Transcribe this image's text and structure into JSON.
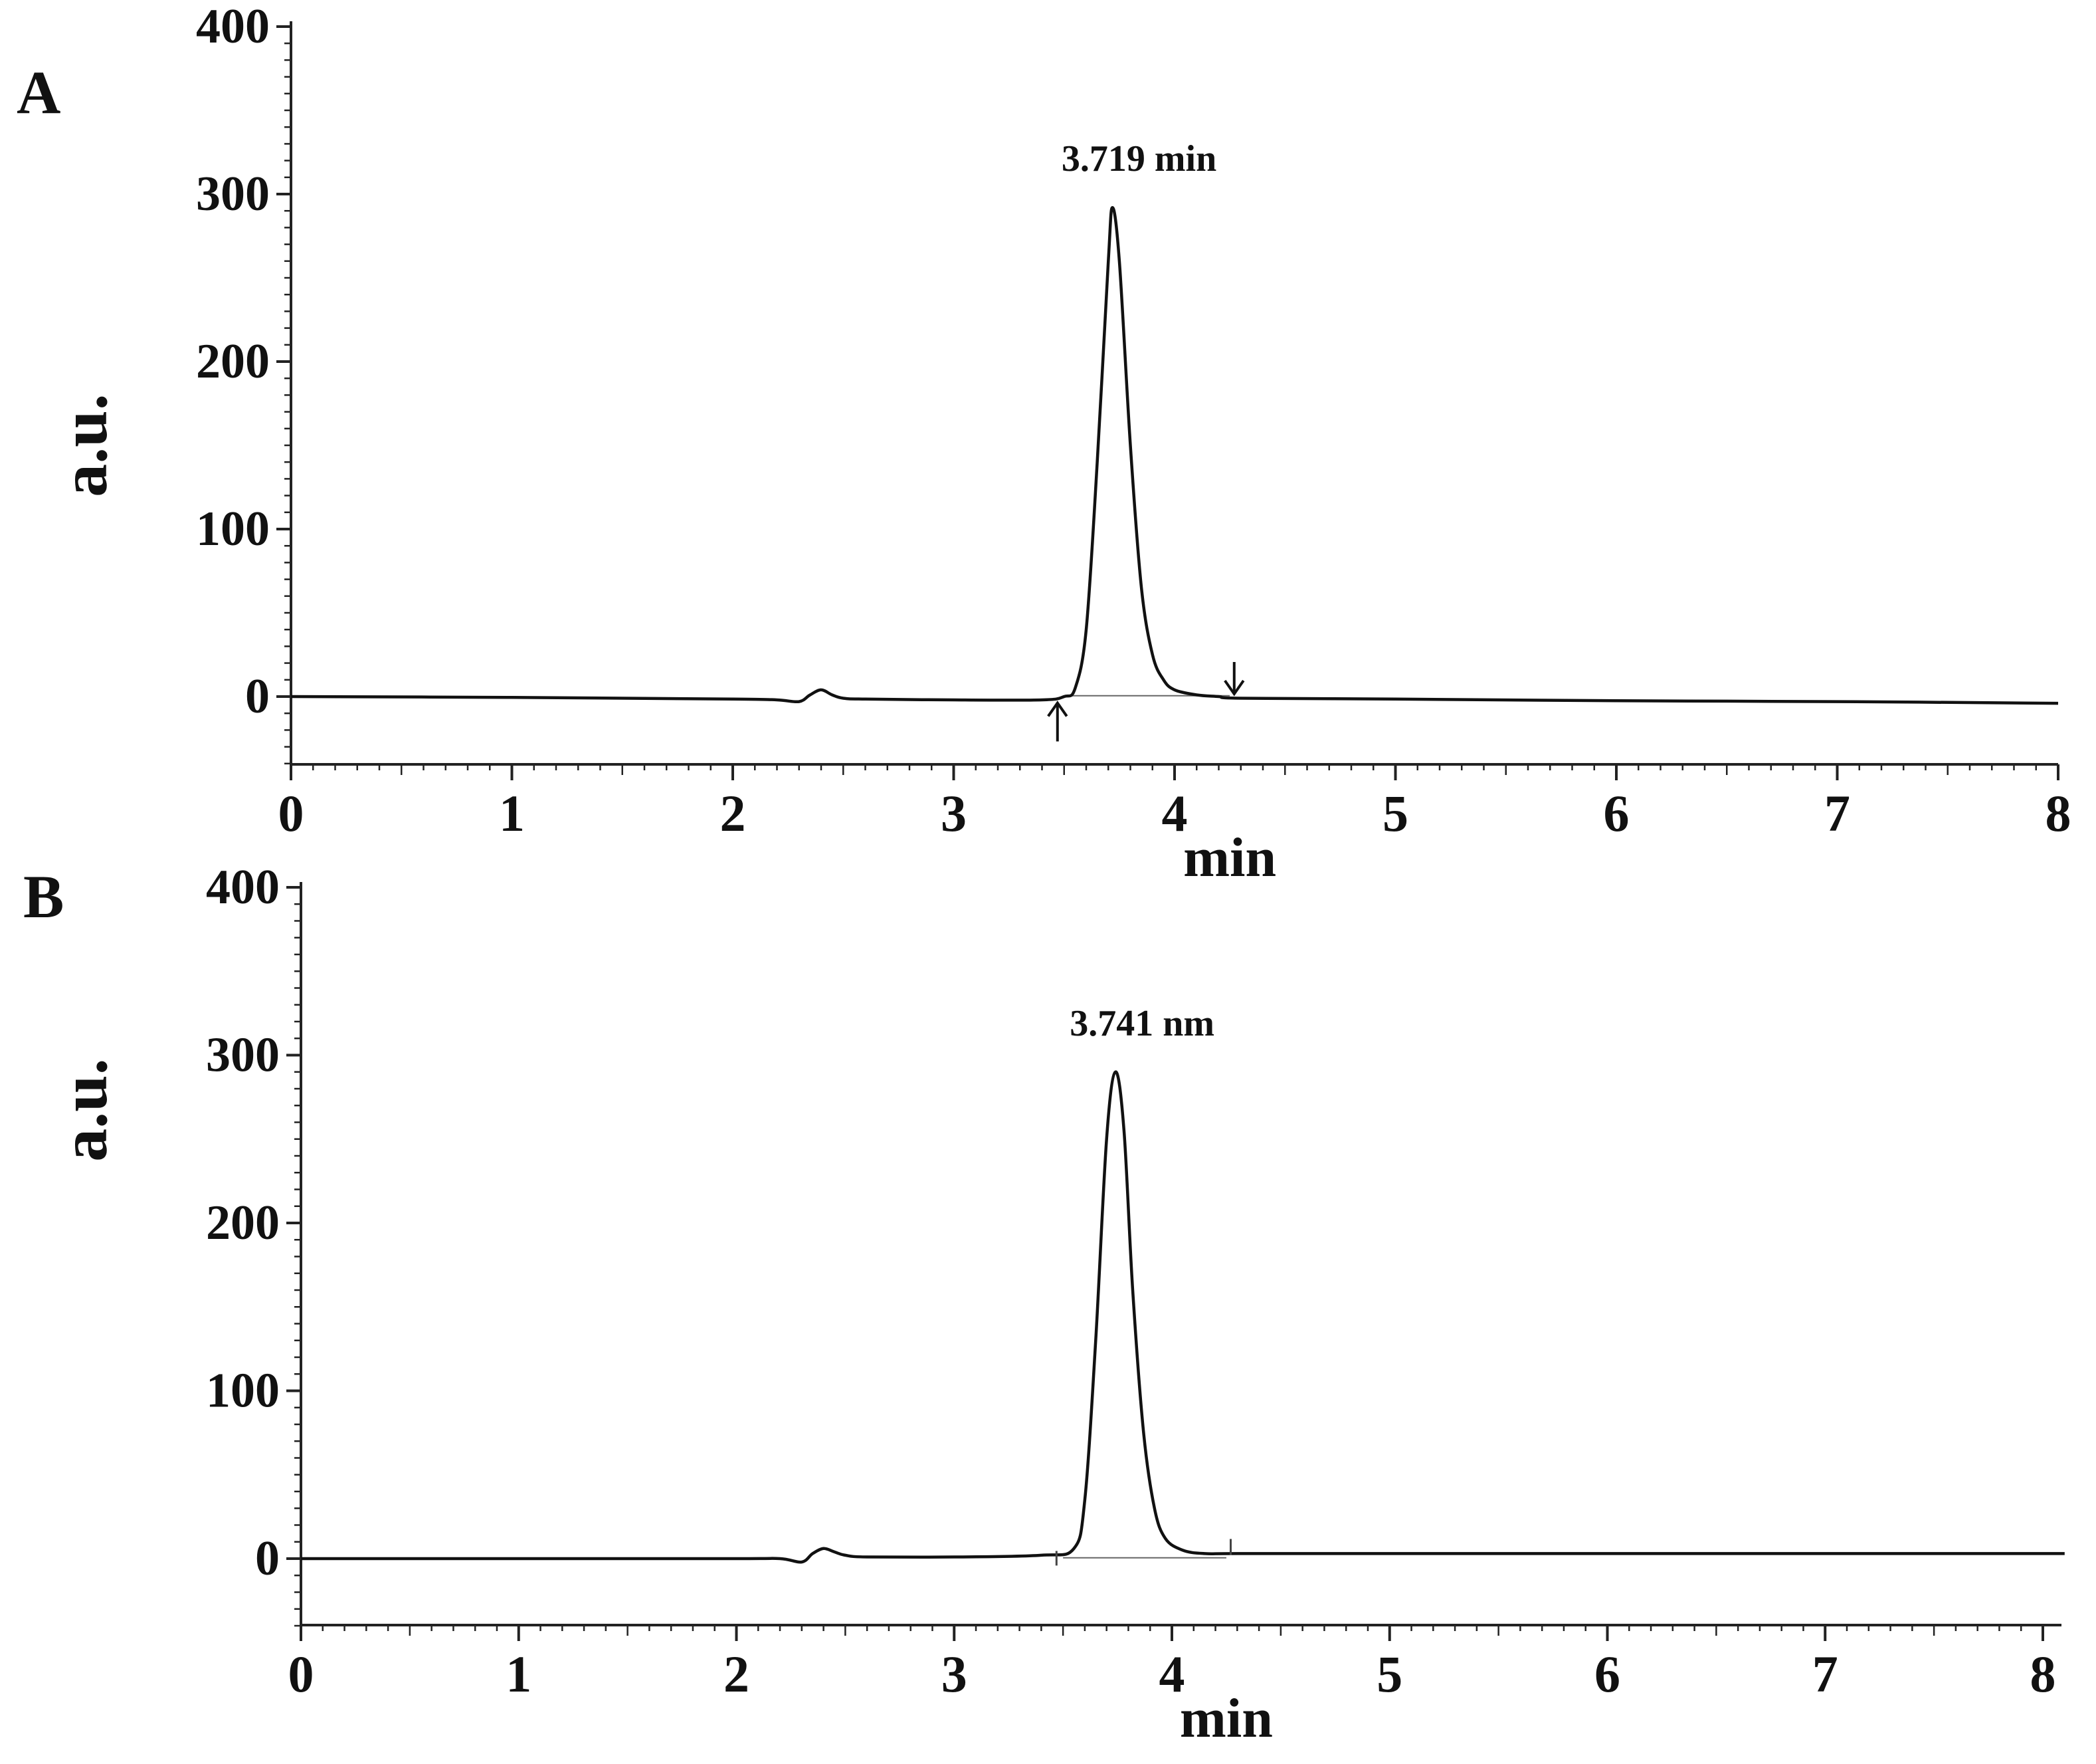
{
  "chart_data": [
    {
      "type": "line",
      "panel": "A",
      "xlabel": "min",
      "ylabel": "a.u.",
      "xlim": [
        0,
        8
      ],
      "ylim": [
        -40,
        400
      ],
      "xticks": [
        "0",
        "1",
        "2",
        "3",
        "4",
        "5",
        "6",
        "7",
        "8"
      ],
      "yticks": [
        "0",
        "100",
        "200",
        "300",
        "400"
      ],
      "peak_annotation": "3.719 min",
      "peak": {
        "x": 3.719,
        "y": 292
      },
      "integration_markers": [
        3.47,
        4.27
      ],
      "grid": false,
      "series": [
        {
          "x": [
            0,
            1,
            2,
            2.2,
            2.3,
            2.35,
            2.4,
            2.45,
            2.5,
            2.6,
            3.0,
            3.4,
            3.5,
            3.55,
            3.6,
            3.65,
            3.7,
            3.719,
            3.75,
            3.8,
            3.85,
            3.9,
            3.95,
            4.0,
            4.1,
            4.2,
            4.3,
            5.0,
            6.0,
            7.0,
            8.0
          ],
          "y": [
            0,
            -0.5,
            -1.5,
            -2,
            -3,
            1,
            4,
            1,
            -1,
            -1.5,
            -2,
            -2,
            0,
            5,
            40,
            140,
            260,
            292,
            260,
            150,
            65,
            25,
            10,
            4,
            1,
            0,
            -1,
            -1.5,
            -2.5,
            -3,
            -4
          ]
        }
      ]
    },
    {
      "type": "line",
      "panel": "B",
      "xlabel": "min",
      "ylabel": "a.u.",
      "xlim": [
        0,
        8.1
      ],
      "ylim": [
        -40,
        400
      ],
      "xticks": [
        "0",
        "1",
        "2",
        "3",
        "4",
        "5",
        "6",
        "7",
        "8"
      ],
      "yticks": [
        "0",
        "100",
        "200",
        "300",
        "400"
      ],
      "peak_annotation": "3.741 nm",
      "peak": {
        "x": 3.741,
        "y": 290
      },
      "grid": false,
      "series": [
        {
          "x": [
            0,
            1,
            2,
            2.2,
            2.3,
            2.35,
            2.4,
            2.45,
            2.5,
            2.6,
            3.0,
            3.4,
            3.55,
            3.6,
            3.65,
            3.7,
            3.741,
            3.78,
            3.82,
            3.87,
            3.92,
            3.97,
            4.05,
            4.15,
            4.3,
            5.0,
            6.0,
            7.0,
            8.1
          ],
          "y": [
            0,
            0,
            0,
            0,
            -2,
            3,
            6,
            4,
            2,
            1,
            1,
            2,
            6,
            35,
            130,
            250,
            290,
            255,
            160,
            75,
            30,
            12,
            5,
            3,
            3,
            3,
            3,
            3,
            3
          ]
        }
      ]
    }
  ]
}
